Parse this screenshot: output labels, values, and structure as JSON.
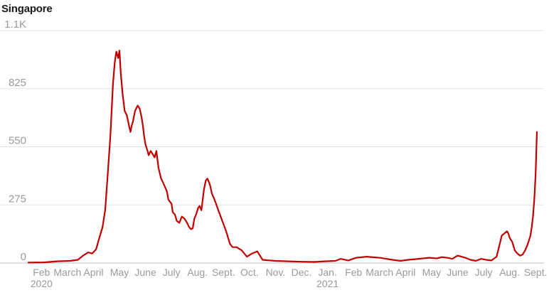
{
  "chart_data": {
    "type": "line",
    "title": "Singapore",
    "xlabel": "",
    "ylabel": "",
    "ylim": [
      0,
      1100
    ],
    "yticks": [
      {
        "value": 0,
        "label": "0"
      },
      {
        "value": 275,
        "label": "275"
      },
      {
        "value": 550,
        "label": "550"
      },
      {
        "value": 825,
        "label": "825"
      },
      {
        "value": 1100,
        "label": "1.1K"
      }
    ],
    "xlim": [
      1,
      20.55
    ],
    "xticks": [
      {
        "pos": 1.5,
        "label": "Feb"
      },
      {
        "pos": 2.5,
        "label": "March"
      },
      {
        "pos": 3.5,
        "label": "April"
      },
      {
        "pos": 4.5,
        "label": "May"
      },
      {
        "pos": 5.5,
        "label": "June"
      },
      {
        "pos": 6.5,
        "label": "July"
      },
      {
        "pos": 7.5,
        "label": "Aug."
      },
      {
        "pos": 8.5,
        "label": "Sept."
      },
      {
        "pos": 9.5,
        "label": "Oct."
      },
      {
        "pos": 10.5,
        "label": "Nov."
      },
      {
        "pos": 11.5,
        "label": "Dec."
      },
      {
        "pos": 12.5,
        "label": "Jan."
      },
      {
        "pos": 13.5,
        "label": "Feb"
      },
      {
        "pos": 14.5,
        "label": "March"
      },
      {
        "pos": 15.5,
        "label": "April"
      },
      {
        "pos": 16.5,
        "label": "May"
      },
      {
        "pos": 17.5,
        "label": "June"
      },
      {
        "pos": 18.5,
        "label": "July"
      },
      {
        "pos": 19.5,
        "label": "Aug."
      },
      {
        "pos": 20.5,
        "label": "Sept."
      }
    ],
    "year_labels": [
      {
        "pos": 1.5,
        "label": "2020"
      },
      {
        "pos": 12.5,
        "label": "2021"
      }
    ],
    "grid": true,
    "legend": "none",
    "series": [
      {
        "color": "#c00000",
        "x": [
          1.0,
          1.6,
          2.1,
          2.6,
          2.9,
          3.1,
          3.3,
          3.45,
          3.6,
          3.75,
          3.85,
          3.95,
          4.05,
          4.15,
          4.25,
          4.32,
          4.38,
          4.45,
          4.5,
          4.55,
          4.62,
          4.7,
          4.78,
          4.85,
          4.92,
          4.97,
          5.02,
          5.1,
          5.2,
          5.28,
          5.35,
          5.4,
          5.45,
          5.5,
          5.58,
          5.62,
          5.7,
          5.78,
          5.85,
          5.92,
          6.0,
          6.1,
          6.18,
          6.25,
          6.32,
          6.38,
          6.5,
          6.55,
          6.63,
          6.7,
          6.8,
          6.9,
          7.0,
          7.1,
          7.18,
          7.25,
          7.32,
          7.38,
          7.45,
          7.52,
          7.58,
          7.65,
          7.75,
          7.82,
          7.88,
          7.95,
          8.0,
          8.05,
          8.12,
          8.2,
          8.3,
          8.45,
          8.6,
          8.75,
          8.85,
          9.0,
          9.2,
          9.4,
          9.6,
          9.8,
          10.0,
          10.5,
          11.0,
          11.5,
          12.0,
          12.4,
          12.8,
          13.0,
          13.3,
          13.6,
          14.0,
          14.5,
          15.0,
          15.3,
          15.6,
          16.0,
          16.4,
          16.7,
          16.9,
          17.1,
          17.3,
          17.5,
          17.8,
          18.0,
          18.2,
          18.4,
          18.6,
          18.8,
          19.0,
          19.2,
          19.4,
          19.45,
          19.5,
          19.55,
          19.6,
          19.65,
          19.7,
          19.8,
          19.9,
          20.0,
          20.1,
          20.2,
          20.3,
          20.35,
          20.4,
          20.45,
          20.5,
          20.55
        ],
        "y": [
          2,
          3,
          8,
          10,
          15,
          35,
          50,
          45,
          65,
          130,
          170,
          250,
          420,
          600,
          850,
          950,
          1000,
          970,
          1005,
          900,
          800,
          720,
          700,
          660,
          620,
          650,
          670,
          720,
          745,
          730,
          690,
          650,
          600,
          560,
          530,
          510,
          530,
          515,
          500,
          530,
          450,
          400,
          380,
          360,
          340,
          300,
          280,
          240,
          230,
          200,
          190,
          220,
          210,
          190,
          170,
          160,
          165,
          210,
          230,
          260,
          270,
          250,
          350,
          390,
          400,
          380,
          360,
          330,
          310,
          285,
          250,
          200,
          150,
          90,
          75,
          75,
          60,
          30,
          45,
          55,
          15,
          10,
          8,
          6,
          5,
          8,
          10,
          20,
          12,
          25,
          30,
          25,
          15,
          10,
          15,
          20,
          25,
          22,
          28,
          25,
          20,
          35,
          25,
          15,
          10,
          20,
          15,
          12,
          30,
          130,
          150,
          140,
          120,
          110,
          100,
          80,
          60,
          45,
          35,
          40,
          60,
          90,
          130,
          170,
          220,
          300,
          420,
          620
        ]
      }
    ]
  }
}
